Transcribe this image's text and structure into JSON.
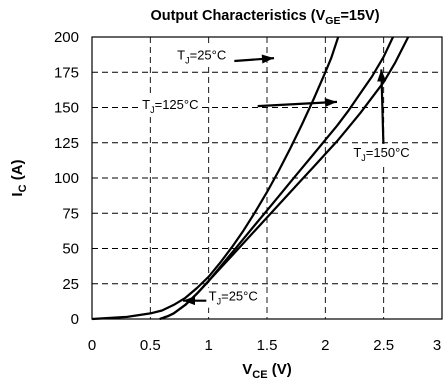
{
  "chart_data": {
    "type": "line",
    "title_main": "Output Characteristics (V",
    "title_sub": "GE",
    "title_end": "=15V)",
    "xlabel_main": "V",
    "xlabel_sub": "CE",
    "xlabel_end": " (V)",
    "ylabel_main": "I",
    "ylabel_sub": "C",
    "ylabel_end": " (A)",
    "xlim": [
      0,
      3
    ],
    "ylim": [
      0,
      200
    ],
    "xticks": [
      "0",
      "0.5",
      "1",
      "1.5",
      "2",
      "2.5",
      "3"
    ],
    "yticks": [
      "0",
      "25",
      "50",
      "75",
      "100",
      "125",
      "150",
      "175",
      "200"
    ],
    "grid": true,
    "series": [
      {
        "id": "tj25_upper",
        "points": [
          [
            0,
            0
          ],
          [
            0.3,
            1.5
          ],
          [
            0.5,
            4
          ],
          [
            0.6,
            6
          ],
          [
            0.7,
            10
          ],
          [
            0.8,
            15
          ],
          [
            0.9,
            22
          ],
          [
            1.0,
            30
          ],
          [
            1.1,
            40
          ],
          [
            1.2,
            51
          ],
          [
            1.3,
            63
          ],
          [
            1.4,
            76
          ],
          [
            1.5,
            90
          ],
          [
            1.6,
            105
          ],
          [
            1.7,
            121
          ],
          [
            1.8,
            138
          ],
          [
            1.9,
            156
          ],
          [
            2.0,
            175
          ],
          [
            2.05,
            185
          ],
          [
            2.11,
            200
          ]
        ]
      },
      {
        "id": "tj125",
        "points": [
          [
            0.58,
            0
          ],
          [
            0.65,
            2
          ],
          [
            0.7,
            4
          ],
          [
            0.8,
            10
          ],
          [
            0.9,
            18
          ],
          [
            1.0,
            27
          ],
          [
            1.1,
            37
          ],
          [
            1.2,
            47
          ],
          [
            1.3,
            57
          ],
          [
            1.4,
            67
          ],
          [
            1.5,
            77
          ],
          [
            1.6,
            87
          ],
          [
            1.7,
            97
          ],
          [
            1.8,
            107
          ],
          [
            1.9,
            117
          ],
          [
            2.0,
            127
          ],
          [
            2.1,
            137
          ],
          [
            2.2,
            148
          ],
          [
            2.3,
            160
          ],
          [
            2.4,
            172
          ],
          [
            2.5,
            186
          ],
          [
            2.58,
            200
          ]
        ]
      },
      {
        "id": "tj150",
        "points": [
          [
            0.58,
            0
          ],
          [
            0.65,
            2
          ],
          [
            0.7,
            4
          ],
          [
            0.8,
            10
          ],
          [
            0.9,
            18
          ],
          [
            1.0,
            27
          ],
          [
            1.1,
            36
          ],
          [
            1.2,
            45
          ],
          [
            1.3,
            54
          ],
          [
            1.4,
            63
          ],
          [
            1.5,
            72
          ],
          [
            1.6,
            81
          ],
          [
            1.7,
            90
          ],
          [
            1.8,
            99
          ],
          [
            1.9,
            108
          ],
          [
            2.0,
            117
          ],
          [
            2.1,
            126
          ],
          [
            2.2,
            136
          ],
          [
            2.3,
            146
          ],
          [
            2.4,
            157
          ],
          [
            2.5,
            168
          ],
          [
            2.6,
            182
          ],
          [
            2.71,
            200
          ]
        ]
      }
    ],
    "annotations": [
      {
        "main": "T",
        "sub": "J",
        "end": "=25°C",
        "text_at": [
          0.73,
          184
        ],
        "arrow_from": [
          1.22,
          183
        ],
        "arrow_to": [
          1.56,
          185
        ]
      },
      {
        "main": "T",
        "sub": "J",
        "end": "=125°C",
        "text_at": [
          0.43,
          149
        ],
        "arrow_from": [
          1.42,
          151
        ],
        "arrow_to": [
          2.1,
          154
        ]
      },
      {
        "main": "T",
        "sub": "J",
        "end": "=150°C",
        "text_at": [
          2.24,
          115
        ],
        "arrow_from": [
          2.5,
          117
        ],
        "arrow_to": [
          2.48,
          177
        ]
      },
      {
        "main": "T",
        "sub": "J",
        "end": "=25°C",
        "text_at": [
          1.0,
          13
        ],
        "arrow_from": [
          0.98,
          13
        ],
        "arrow_to": [
          0.78,
          13
        ]
      }
    ]
  }
}
